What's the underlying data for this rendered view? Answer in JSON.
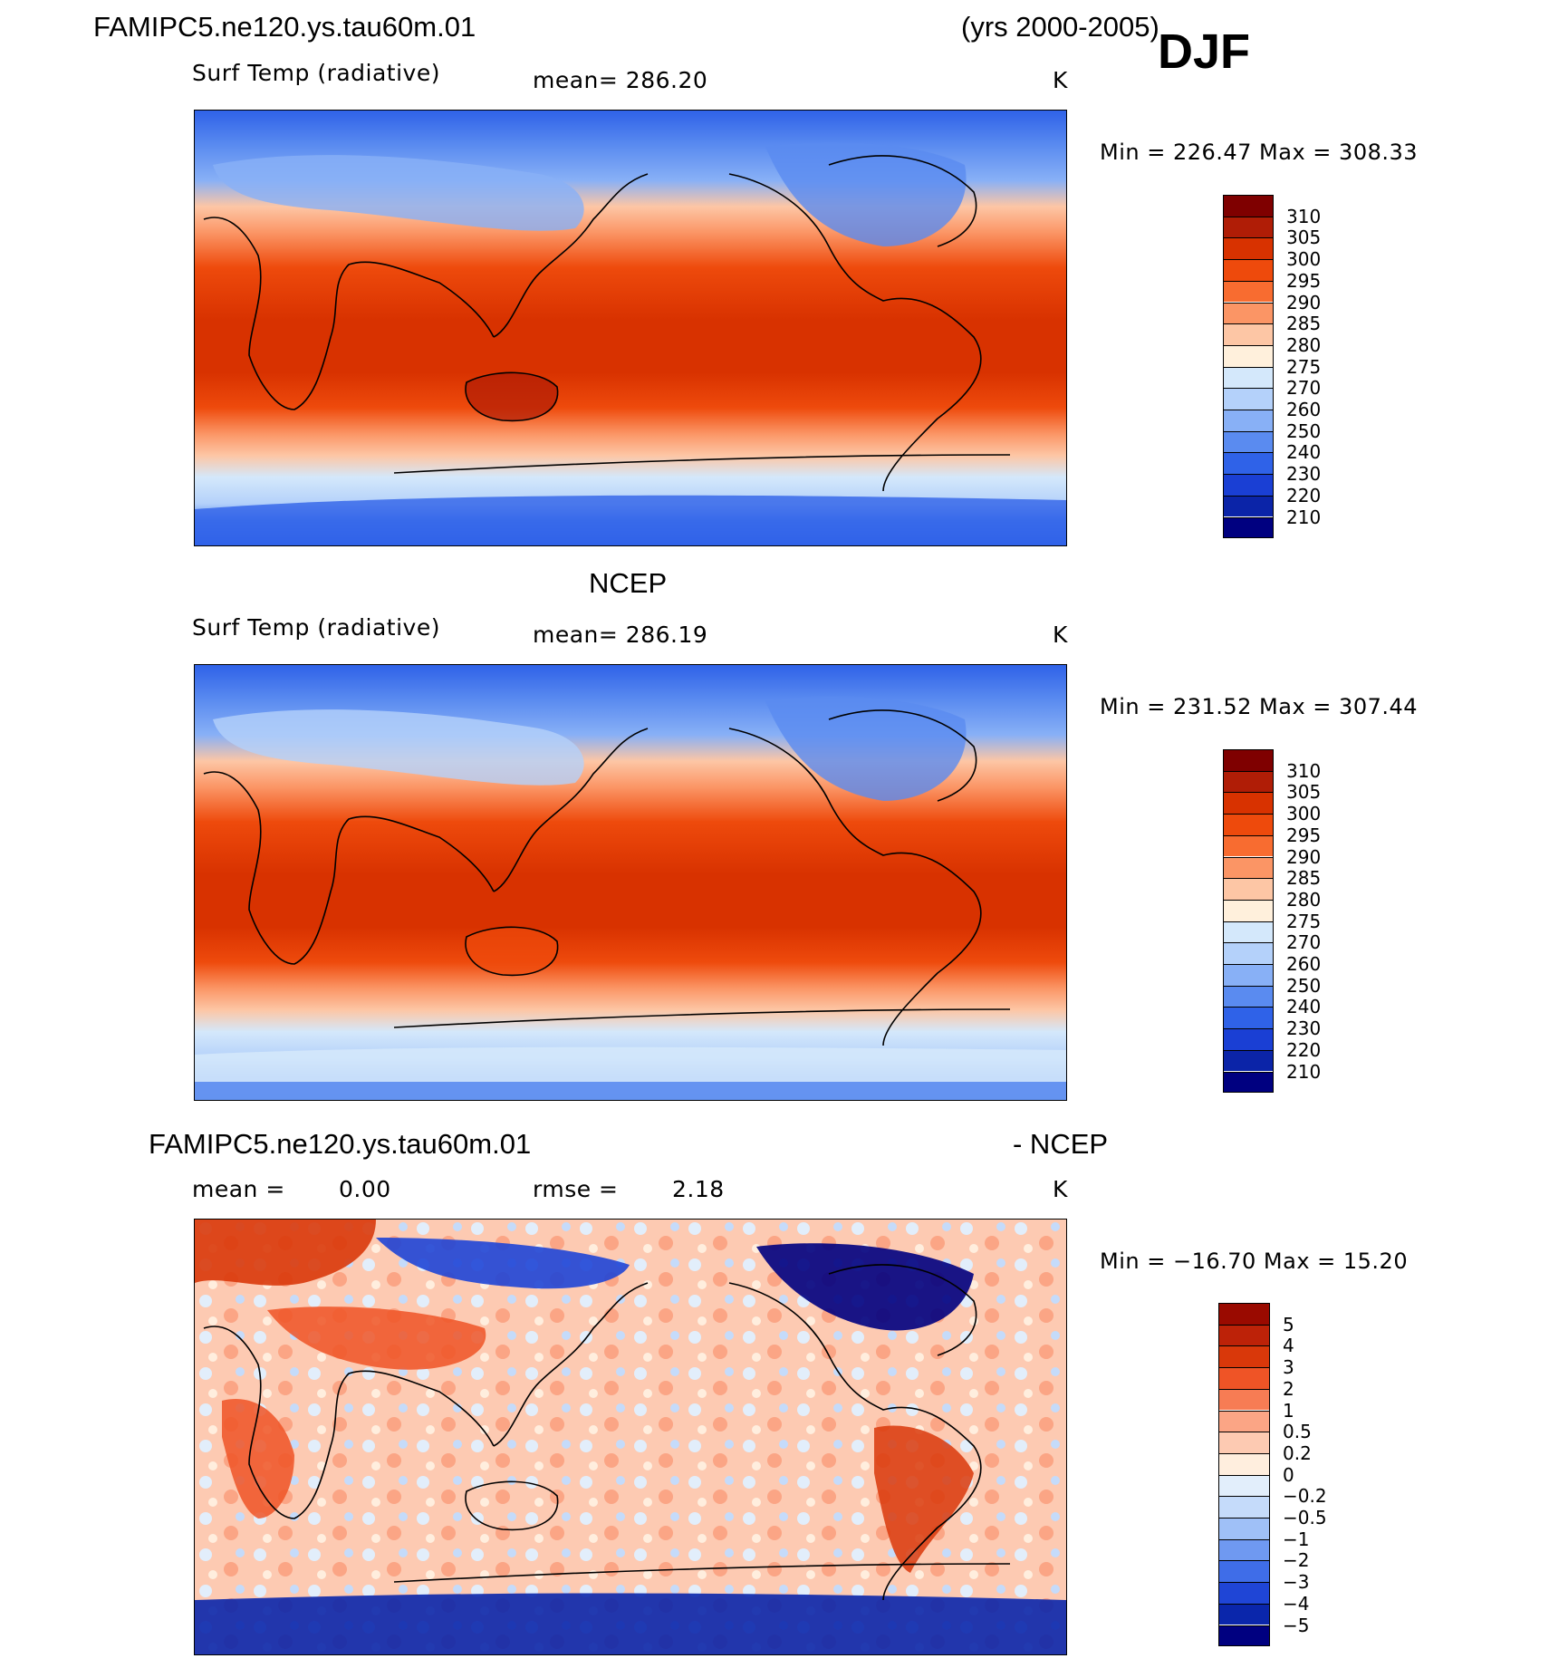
{
  "header": {
    "case_name": "FAMIPC5.ne120.ys.tau60m.01",
    "years": "(yrs 2000-2005)",
    "season": "DJF"
  },
  "panels": [
    {
      "id": "model",
      "title": "",
      "variable": "Surf Temp (radiative)",
      "stat": "mean=  286.20",
      "units": "K",
      "minmax": "Min  =  226.47  Max  =  308.33",
      "colorbar": {
        "labels": [
          "310",
          "305",
          "300",
          "295",
          "290",
          "285",
          "280",
          "275",
          "270",
          "260",
          "250",
          "240",
          "230",
          "220",
          "210"
        ],
        "colors": [
          "#7f0000",
          "#b01d06",
          "#d83200",
          "#ee4a0c",
          "#f86c30",
          "#fb9565",
          "#fdc6a5",
          "#fff0dc",
          "#d4e8fb",
          "#b4d1fa",
          "#88b0f6",
          "#5a8bf0",
          "#2f62e8",
          "#1a3fd4",
          "#0b24a8",
          "#000080"
        ]
      }
    },
    {
      "id": "obs",
      "title": "NCEP",
      "variable": "Surf Temp (radiative)",
      "stat": "mean=  286.19",
      "units": "K",
      "minmax": "Min  =  231.52  Max  =  307.44",
      "colorbar": {
        "labels": [
          "310",
          "305",
          "300",
          "295",
          "290",
          "285",
          "280",
          "275",
          "270",
          "260",
          "250",
          "240",
          "230",
          "220",
          "210"
        ],
        "colors": [
          "#7f0000",
          "#b01d06",
          "#d83200",
          "#ee4a0c",
          "#f86c30",
          "#fb9565",
          "#fdc6a5",
          "#fff0dc",
          "#d4e8fb",
          "#b4d1fa",
          "#88b0f6",
          "#5a8bf0",
          "#2f62e8",
          "#1a3fd4",
          "#0b24a8",
          "#000080"
        ]
      }
    },
    {
      "id": "diff",
      "title_left": "FAMIPC5.ne120.ys.tau60m.01",
      "title_right": "- NCEP",
      "mean_label": "mean  =",
      "mean_value": "0.00",
      "rmse_label": "rmse  =",
      "rmse_value": "2.18",
      "units": "K",
      "minmax": "Min  =  −16.70  Max  =    15.20",
      "colorbar": {
        "labels": [
          "5",
          "4",
          "3",
          "2",
          "1",
          "0.5",
          "0.2",
          "0",
          "−0.2",
          "−0.5",
          "−1",
          "−2",
          "−3",
          "−4",
          "−5"
        ],
        "colors": [
          "#9a0a00",
          "#bd2208",
          "#d9380a",
          "#ef5426",
          "#f77c54",
          "#fba585",
          "#fdcab2",
          "#ffeede",
          "#e2eefb",
          "#c5dbfa",
          "#9fc0f7",
          "#6f99f1",
          "#3f6de8",
          "#1f45d6",
          "#0a26ab",
          "#000080"
        ]
      }
    }
  ]
}
